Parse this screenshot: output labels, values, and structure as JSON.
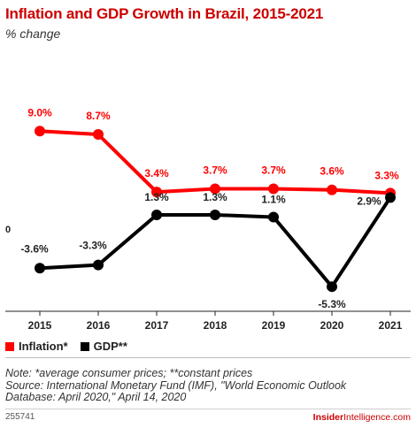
{
  "title": "Inflation and GDP Growth in Brazil, 2015-2021",
  "subtitle": "% change",
  "legend": {
    "inflation": "Inflation*",
    "gdp": "GDP**"
  },
  "notes": {
    "line1": "Note: *average consumer prices; **constant prices",
    "line2": "Source: International Monetary Fund (IMF), \"World Economic Outlook",
    "line3": "Database: April 2020,\" April 14, 2020"
  },
  "footer": {
    "code": "255741",
    "brand_bold": "Insider",
    "brand_thin": "Intelligence",
    "brand_suffix": ".com"
  },
  "colors": {
    "inflation": "#ff0000",
    "gdp": "#000000",
    "title": "#cc0000"
  },
  "chart_data": {
    "type": "line",
    "x": [
      "2015",
      "2016",
      "2017",
      "2018",
      "2019",
      "2020",
      "2021"
    ],
    "series": [
      {
        "name": "Inflation*",
        "values": [
          9.0,
          8.7,
          3.4,
          3.7,
          3.7,
          3.6,
          3.3
        ],
        "labels": [
          "9.0%",
          "8.7%",
          "3.4%",
          "3.7%",
          "3.7%",
          "3.6%",
          "3.3%"
        ]
      },
      {
        "name": "GDP**",
        "values": [
          -3.6,
          -3.3,
          1.3,
          1.3,
          1.1,
          -5.3,
          2.9
        ],
        "labels": [
          "-3.6%",
          "-3.3%",
          "1.3%",
          "1.3%",
          "1.1%",
          "-5.3%",
          "2.9%"
        ]
      }
    ],
    "yticks": [
      "0"
    ],
    "ylim": [
      -6.5,
      11
    ],
    "grid": false,
    "legend_position": "bottom-left"
  }
}
